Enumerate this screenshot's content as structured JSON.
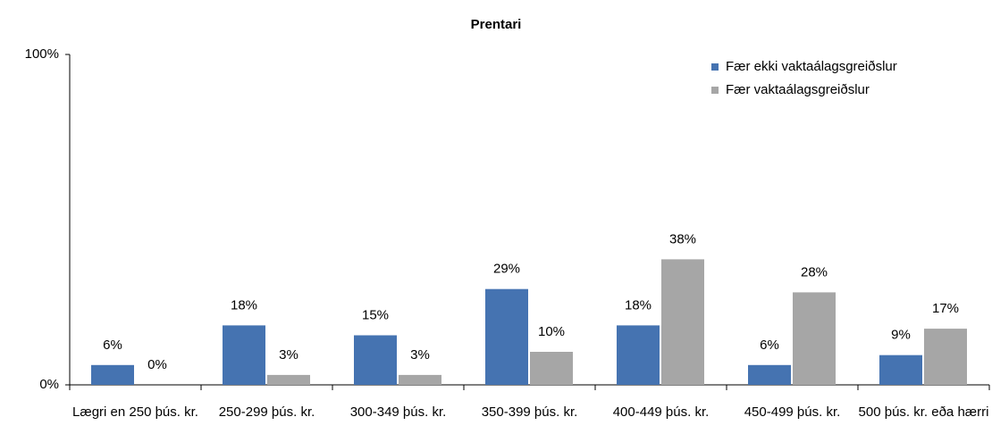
{
  "chart_data": {
    "type": "bar",
    "title": "Prentari",
    "categories": [
      "Lægri en 250 þús. kr.",
      "250-299 þús. kr.",
      "300-349 þús. kr.",
      "350-399 þús. kr.",
      "400-449 þús. kr.",
      "450-499 þús. kr.",
      "500 þús. kr. eða hærri"
    ],
    "series": [
      {
        "name": "Fær ekki vaktaálagsgreiðslur",
        "color": "#4573b1",
        "values": [
          6,
          18,
          15,
          29,
          18,
          6,
          9
        ],
        "value_labels": [
          "6%",
          "18%",
          "15%",
          "29%",
          "18%",
          "6%",
          "9%"
        ]
      },
      {
        "name": "Fær vaktaálagsgreiðslur",
        "color": "#a6a6a6",
        "values": [
          0,
          3,
          3,
          10,
          38,
          28,
          17
        ],
        "value_labels": [
          "0%",
          "3%",
          "3%",
          "10%",
          "38%",
          "28%",
          "17%"
        ]
      }
    ],
    "ylim": [
      0,
      100
    ],
    "yticks": [
      {
        "value": 0,
        "label": "0%"
      },
      {
        "value": 100,
        "label": "100%"
      }
    ],
    "legend": "top-right"
  }
}
